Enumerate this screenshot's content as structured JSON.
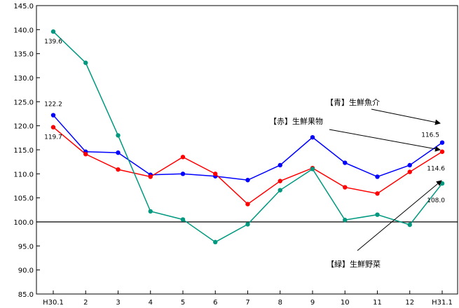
{
  "chart_data": {
    "type": "line",
    "categories": [
      "H30.1",
      "2",
      "3",
      "4",
      "5",
      "6",
      "7",
      "8",
      "9",
      "10",
      "11",
      "12",
      "H31.1"
    ],
    "ylim": [
      85.0,
      145.0
    ],
    "ytick_step": 5,
    "reference_line": 100.0,
    "grid": false,
    "series": [
      {
        "color": "#0000ff",
        "values": [
          122.2,
          114.6,
          114.4,
          109.8,
          110.0,
          109.5,
          108.7,
          111.8,
          117.6,
          112.3,
          109.4,
          111.8,
          116.5
        ]
      },
      {
        "color": "#ff0000",
        "values": [
          119.7,
          114.1,
          110.9,
          109.4,
          113.5,
          110.0,
          103.7,
          108.5,
          111.2,
          107.2,
          105.9,
          110.4,
          114.6
        ]
      },
      {
        "color": "#009980",
        "values": [
          139.6,
          133.1,
          118.0,
          102.2,
          100.5,
          95.8,
          99.5,
          106.6,
          111.0,
          100.4,
          101.5,
          99.4,
          108.0
        ]
      }
    ],
    "data_labels": [
      {
        "series": 2,
        "index": 0,
        "text": "139.6",
        "side": "below"
      },
      {
        "series": 0,
        "index": 0,
        "text": "122.2",
        "side": "above"
      },
      {
        "series": 1,
        "index": 0,
        "text": "119.7",
        "side": "below"
      },
      {
        "series": 0,
        "index": 12,
        "text": "116.5",
        "side": "above-left"
      },
      {
        "series": 1,
        "index": 12,
        "text": "114.6",
        "side": "below-left"
      },
      {
        "series": 2,
        "index": 12,
        "text": "108.0",
        "side": "below-left"
      }
    ],
    "annotations": [
      {
        "text": "【青】生鮮魚介",
        "series": 0
      },
      {
        "text": "【赤】生鮮果物",
        "series": 1
      },
      {
        "text": "【緑】生鮮野菜",
        "series": 2
      }
    ]
  }
}
